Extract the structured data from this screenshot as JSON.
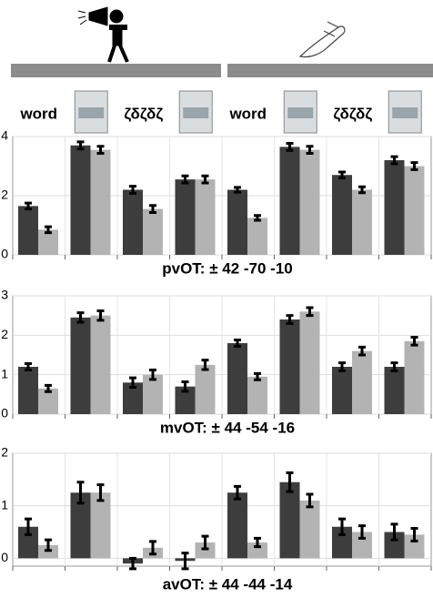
{
  "chart_data": [
    {
      "type": "bar",
      "title": "pvOT: ± 42 -70 -10",
      "categories": [
        "word",
        null,
        "ζδζδζ",
        null,
        "word",
        null,
        "ζδζδζ",
        null
      ],
      "ylim": [
        0,
        4
      ],
      "yticks": [
        0,
        2,
        4
      ],
      "grid": true,
      "series": [
        {
          "color": "#3d3d3d",
          "values": [
            1.65,
            3.7,
            2.2,
            2.55,
            2.2,
            3.65,
            2.7,
            3.2
          ],
          "errors": [
            0.1,
            0.12,
            0.12,
            0.12,
            0.08,
            0.12,
            0.1,
            0.12
          ]
        },
        {
          "color": "#b3b3b3",
          "values": [
            0.85,
            3.55,
            1.55,
            2.55,
            1.25,
            3.55,
            2.2,
            3.0
          ],
          "errors": [
            0.1,
            0.12,
            0.12,
            0.12,
            0.08,
            0.12,
            0.1,
            0.12
          ]
        }
      ]
    },
    {
      "type": "bar",
      "title": "mvOT: ± 44 -54 -16",
      "ylim": [
        0,
        3
      ],
      "yticks": [
        0,
        1,
        2,
        3
      ],
      "grid": true,
      "series": [
        {
          "color": "#3d3d3d",
          "values": [
            1.2,
            2.45,
            0.8,
            0.7,
            1.8,
            2.4,
            1.2,
            1.2
          ],
          "errors": [
            0.08,
            0.12,
            0.12,
            0.12,
            0.08,
            0.1,
            0.1,
            0.1
          ]
        },
        {
          "color": "#b3b3b3",
          "values": [
            0.65,
            2.5,
            1.0,
            1.25,
            0.95,
            2.6,
            1.6,
            1.85
          ],
          "errors": [
            0.08,
            0.12,
            0.12,
            0.12,
            0.08,
            0.1,
            0.1,
            0.1
          ]
        }
      ]
    },
    {
      "type": "bar",
      "title": "avOT: ± 44 -44 -14",
      "ylim": [
        -0.15,
        2
      ],
      "yticks": [
        0,
        1,
        2
      ],
      "grid": true,
      "series": [
        {
          "color": "#3d3d3d",
          "values": [
            0.6,
            1.25,
            -0.1,
            -0.05,
            1.25,
            1.45,
            0.6,
            0.5
          ],
          "errors": [
            0.15,
            0.2,
            0.1,
            0.15,
            0.12,
            0.18,
            0.15,
            0.15
          ]
        },
        {
          "color": "#b3b3b3",
          "values": [
            0.25,
            1.25,
            0.2,
            0.3,
            0.3,
            1.1,
            0.5,
            0.45
          ],
          "errors": [
            0.1,
            0.15,
            0.12,
            0.12,
            0.08,
            0.12,
            0.12,
            0.12
          ]
        }
      ]
    }
  ]
}
